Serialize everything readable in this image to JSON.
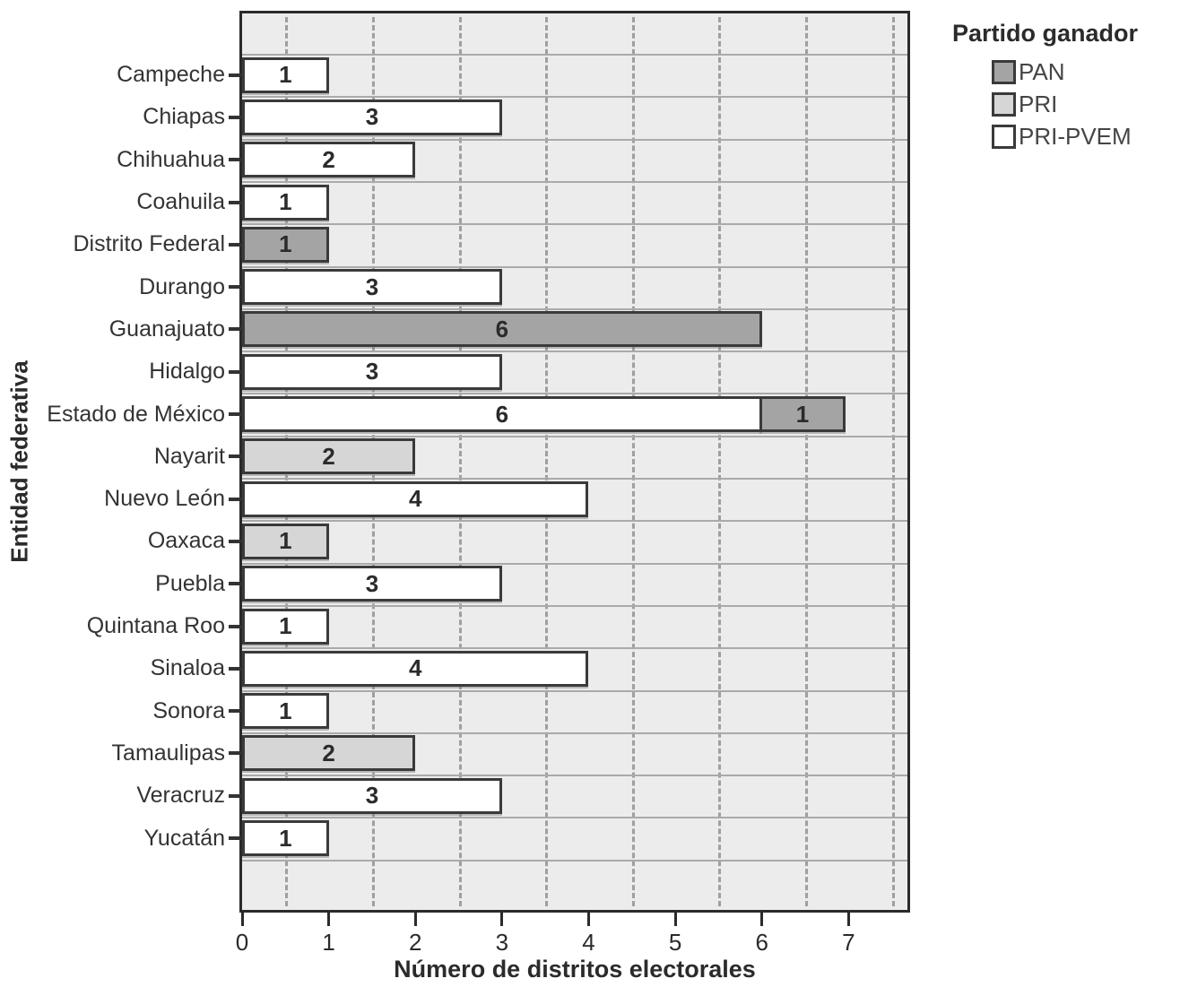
{
  "chart_data": {
    "type": "bar",
    "orientation": "horizontal",
    "stacked": true,
    "xlabel": "Número de distritos electorales",
    "ylabel": "Entidad federativa",
    "xlim": [
      0,
      7.68
    ],
    "xticks": [
      0,
      1,
      2,
      3,
      4,
      5,
      6,
      7
    ],
    "grid": {
      "vertical_dashed_at": [
        0.5,
        1.5,
        2.5,
        3.5,
        4.5,
        5.5,
        6.5,
        7.5
      ],
      "horizontal_row_separators": true
    },
    "plot_background": "#ececec",
    "bar_border_color": "#3a3a3a",
    "legend": {
      "title": "Partido ganador",
      "position": "top-right",
      "entries": [
        {
          "label": "PAN",
          "color": "#a4a4a4"
        },
        {
          "label": "PRI",
          "color": "#d6d6d6"
        },
        {
          "label": "PRI-PVEM",
          "color": "#ffffff"
        }
      ]
    },
    "rows": [
      {
        "category": "Campeche",
        "segments": [
          {
            "party": "PRI-PVEM",
            "value": 1
          }
        ]
      },
      {
        "category": "Chiapas",
        "segments": [
          {
            "party": "PRI-PVEM",
            "value": 3
          }
        ]
      },
      {
        "category": "Chihuahua",
        "segments": [
          {
            "party": "PRI-PVEM",
            "value": 2
          }
        ]
      },
      {
        "category": "Coahuila",
        "segments": [
          {
            "party": "PRI-PVEM",
            "value": 1
          }
        ]
      },
      {
        "category": "Distrito Federal",
        "segments": [
          {
            "party": "PAN",
            "value": 1
          }
        ]
      },
      {
        "category": "Durango",
        "segments": [
          {
            "party": "PRI-PVEM",
            "value": 3
          }
        ]
      },
      {
        "category": "Guanajuato",
        "segments": [
          {
            "party": "PAN",
            "value": 6
          }
        ]
      },
      {
        "category": "Hidalgo",
        "segments": [
          {
            "party": "PRI-PVEM",
            "value": 3
          }
        ]
      },
      {
        "category": "Estado de México",
        "segments": [
          {
            "party": "PRI-PVEM",
            "value": 6
          },
          {
            "party": "PAN",
            "value": 1
          }
        ]
      },
      {
        "category": "Nayarit",
        "segments": [
          {
            "party": "PRI",
            "value": 2
          }
        ]
      },
      {
        "category": "Nuevo León",
        "segments": [
          {
            "party": "PRI-PVEM",
            "value": 4
          }
        ]
      },
      {
        "category": "Oaxaca",
        "segments": [
          {
            "party": "PRI",
            "value": 1
          }
        ]
      },
      {
        "category": "Puebla",
        "segments": [
          {
            "party": "PRI-PVEM",
            "value": 3
          }
        ]
      },
      {
        "category": "Quintana Roo",
        "segments": [
          {
            "party": "PRI-PVEM",
            "value": 1
          }
        ]
      },
      {
        "category": "Sinaloa",
        "segments": [
          {
            "party": "PRI-PVEM",
            "value": 4
          }
        ]
      },
      {
        "category": "Sonora",
        "segments": [
          {
            "party": "PRI-PVEM",
            "value": 1
          }
        ]
      },
      {
        "category": "Tamaulipas",
        "segments": [
          {
            "party": "PRI",
            "value": 2
          }
        ]
      },
      {
        "category": "Veracruz",
        "segments": [
          {
            "party": "PRI-PVEM",
            "value": 3
          }
        ]
      },
      {
        "category": "Yucatán",
        "segments": [
          {
            "party": "PRI-PVEM",
            "value": 1
          }
        ]
      }
    ]
  }
}
